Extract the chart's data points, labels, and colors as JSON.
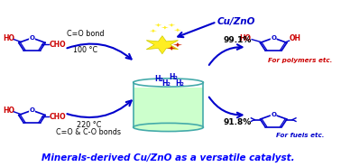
{
  "title": "Minerals-derived Cu/ZnO as a versatile catalyst.",
  "title_color": "#0000ff",
  "title_fontsize": 7.5,
  "background_color": "#ffffff",
  "catalyst_label": "Cu/ZnO",
  "catalyst_color": "#0000cc",
  "h2_color": "#0000cc",
  "top_arrow_label1": "C=O bond",
  "top_arrow_label2": "100 °C",
  "bottom_arrow_label1": "220 °C",
  "bottom_arrow_label2": "C=O & C-O bonds",
  "yield_top": "99.1%",
  "yield_bottom": "91.8%",
  "polymers_label": "For polymers etc.",
  "fuels_label": "For fuels etc.",
  "polymers_color": "#cc0000",
  "fuels_color": "#0000cc",
  "arrow_color": "#0000cc",
  "liquid_color": "#ccffcc",
  "reactor_edge_color": "#44aaaa",
  "molecule_color": "#0000cc",
  "ho_color": "#cc0000",
  "cho_color": "#cc0000"
}
